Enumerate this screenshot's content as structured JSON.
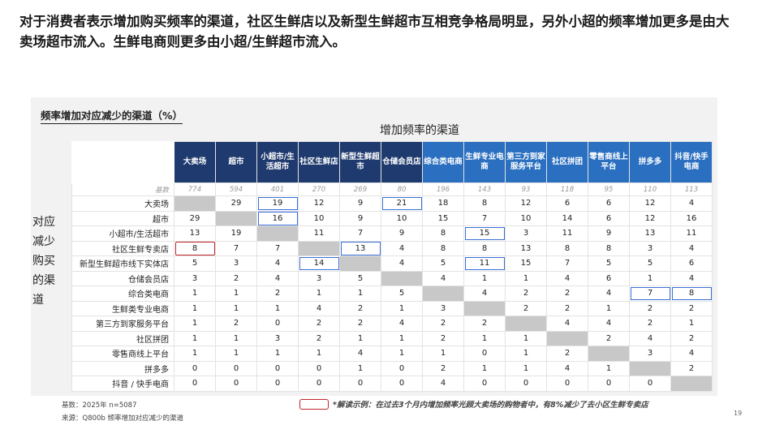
{
  "headline": "对于消费者表示增加购买频率的渠道，社区生鲜店以及新型生鲜超市互相竞争格局明显，另外小超的频率增加更多是由大卖场超市流入。生鲜电商则更多由小超/生鲜超市流入。",
  "section_title": "频率增加对应减少的渠道（%）",
  "top_title": "增加频率的渠道",
  "side_title": "对应减少购买的渠道",
  "columns": [
    "大卖场",
    "超市",
    "小超市/生活超市",
    "社区生鲜店",
    "新型生鲜超市",
    "仓储会员店",
    "综合类电商",
    "生鲜专业电商",
    "第三方到家服务平台",
    "社区拼团",
    "零售商线上平台",
    "拼多多",
    "抖音/快手电商"
  ],
  "column_colors": {
    "offline": "#1f3a6e",
    "online": "#2a6fc0"
  },
  "base_row": {
    "label": "基数",
    "values": [
      "774",
      "594",
      "401",
      "270",
      "269",
      "80",
      "196",
      "143",
      "93",
      "118",
      "95",
      "110",
      "113"
    ]
  },
  "rows": [
    {
      "label": "大卖场",
      "values": [
        "",
        "29",
        "19",
        "12",
        "9",
        "21",
        "18",
        "8",
        "12",
        "6",
        "6",
        "12",
        "4"
      ]
    },
    {
      "label": "超市",
      "values": [
        "29",
        "",
        "16",
        "10",
        "9",
        "10",
        "15",
        "7",
        "10",
        "14",
        "6",
        "12",
        "16"
      ]
    },
    {
      "label": "小超市/生活超市",
      "values": [
        "13",
        "19",
        "",
        "11",
        "7",
        "9",
        "8",
        "15",
        "3",
        "11",
        "9",
        "13",
        "11"
      ]
    },
    {
      "label": "社区生鲜专卖店",
      "values": [
        "8",
        "7",
        "7",
        "",
        "13",
        "4",
        "8",
        "8",
        "13",
        "8",
        "8",
        "3",
        "4"
      ]
    },
    {
      "label": "新型生鲜超市线下实体店",
      "values": [
        "5",
        "3",
        "4",
        "14",
        "",
        "4",
        "5",
        "11",
        "15",
        "7",
        "5",
        "5",
        "6"
      ]
    },
    {
      "label": "仓储会员店",
      "values": [
        "3",
        "2",
        "4",
        "3",
        "5",
        "",
        "4",
        "1",
        "1",
        "4",
        "6",
        "1",
        "4"
      ]
    },
    {
      "label": "综合类电商",
      "values": [
        "1",
        "1",
        "2",
        "1",
        "1",
        "5",
        "",
        "4",
        "2",
        "2",
        "4",
        "7",
        "8"
      ]
    },
    {
      "label": "生鲜类专业电商",
      "values": [
        "1",
        "1",
        "1",
        "4",
        "2",
        "1",
        "3",
        "",
        "2",
        "2",
        "1",
        "2",
        "2"
      ]
    },
    {
      "label": "第三方到家服务平台",
      "values": [
        "1",
        "2",
        "0",
        "2",
        "2",
        "4",
        "2",
        "2",
        "",
        "4",
        "4",
        "2",
        "1"
      ]
    },
    {
      "label": "社区拼团",
      "values": [
        "1",
        "1",
        "3",
        "2",
        "1",
        "1",
        "2",
        "1",
        "1",
        "",
        "2",
        "4",
        "2"
      ]
    },
    {
      "label": "零售商线上平台",
      "values": [
        "1",
        "1",
        "1",
        "1",
        "4",
        "1",
        "1",
        "0",
        "1",
        "2",
        "",
        "3",
        "4"
      ]
    },
    {
      "label": "拼多多",
      "values": [
        "0",
        "0",
        "0",
        "0",
        "1",
        "0",
        "2",
        "1",
        "1",
        "4",
        "1",
        "",
        "2"
      ]
    },
    {
      "label": "抖音 / 快手电商",
      "values": [
        "0",
        "0",
        "0",
        "0",
        "0",
        "0",
        "4",
        "0",
        "0",
        "0",
        "0",
        "0",
        ""
      ]
    }
  ],
  "highlight_blue": [
    [
      0,
      2
    ],
    [
      0,
      5
    ],
    [
      1,
      2
    ],
    [
      2,
      7
    ],
    [
      3,
      4
    ],
    [
      4,
      3
    ],
    [
      4,
      7
    ],
    [
      6,
      11
    ],
    [
      6,
      12
    ]
  ],
  "highlight_red": [
    [
      3,
      0
    ]
  ],
  "footer": {
    "base_note": "基数：2025年 n=5087",
    "source": "来源：Q800b 频率增加对应减少的渠道",
    "legend_text": "*解读示例：在过去3个月内增加频率光顾大卖场的购物者中，有8%减少了去小区生鲜专卖店"
  },
  "page_number": "19"
}
